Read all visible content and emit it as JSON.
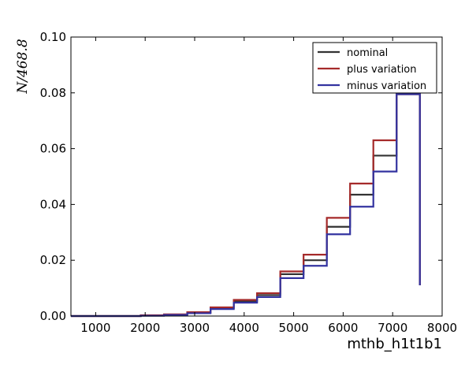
{
  "chart_data": {
    "type": "line",
    "drawstyle": "steps",
    "xlabel": "mthb_h1t1b1",
    "ylabel": "N/468.8",
    "xlim": [
      500,
      8000
    ],
    "ylim": [
      0,
      0.1
    ],
    "xticks": [
      1000,
      2000,
      3000,
      4000,
      5000,
      6000,
      7000,
      8000
    ],
    "yticks": [
      0.0,
      0.02,
      0.04,
      0.06,
      0.08,
      0.1
    ],
    "ytick_labels": [
      "0.00",
      "0.02",
      "0.04",
      "0.06",
      "0.08",
      "0.10"
    ],
    "legend_position": "top-right",
    "grid": false,
    "bin_edges": [
      500,
      970,
      1440,
      1910,
      2380,
      2850,
      3320,
      3790,
      4260,
      4730,
      5200,
      5670,
      6140,
      6610,
      7080,
      7550
    ],
    "series": [
      {
        "name": "nominal",
        "color": "#333333",
        "values": [
          0.0,
          0.0,
          0.0,
          0.0002,
          0.0005,
          0.0012,
          0.0028,
          0.0052,
          0.0075,
          0.015,
          0.02,
          0.032,
          0.0435,
          0.0575,
          0.0795
        ]
      },
      {
        "name": "plus variation",
        "color": "#a52a2a",
        "values": [
          0.0,
          0.0,
          0.0,
          0.0003,
          0.0006,
          0.0014,
          0.0031,
          0.0058,
          0.0082,
          0.016,
          0.022,
          0.0352,
          0.0475,
          0.063,
          0.0795
        ]
      },
      {
        "name": "minus variation",
        "color": "#3333a0",
        "values": [
          0.0,
          0.0,
          0.0,
          0.0001,
          0.0004,
          0.001,
          0.0025,
          0.0048,
          0.0068,
          0.0136,
          0.018,
          0.0293,
          0.0392,
          0.0518,
          0.0795
        ]
      }
    ],
    "final_drop_to": 0.011
  }
}
